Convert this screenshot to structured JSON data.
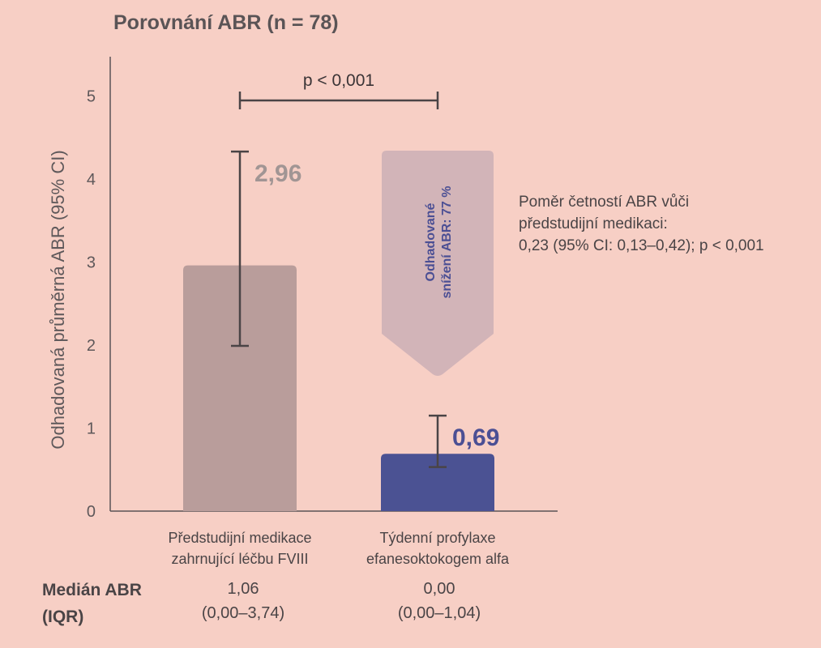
{
  "chart_data": {
    "type": "bar",
    "title": "Porovnání ABR (n = 78)",
    "ylabel": "Odhadovaná průměrná ABR (95% CI)",
    "ylim": [
      0,
      5.5
    ],
    "yticks": [
      "0",
      "1",
      "2",
      "3",
      "4",
      "5"
    ],
    "categories": [
      [
        "Předstudijní medikace",
        "zahrnující léčbu FVIII"
      ],
      [
        "Týdenní profylaxe",
        "efanesoktokogem alfa"
      ]
    ],
    "values": [
      2.96,
      0.69
    ],
    "data_labels": [
      "2,96",
      "0,69"
    ],
    "ci_lower": [
      1.99,
      0.53
    ],
    "ci_upper": [
      4.33,
      1.15
    ],
    "colors": [
      "#b99d9b",
      "#4b5293"
    ],
    "label_colors": [
      "#a19594",
      "#4b4f94"
    ],
    "significance": "p < 0,001",
    "reduction_arrow": [
      "Odhadované",
      "snížení ABR: 77 %"
    ],
    "reduction_arrow_color": "#d2b4b8",
    "annotation": [
      "Poměr četností ABR vůči",
      "předstudijní medikaci:",
      "0,23 (95% CI: 0,13–0,42); p < 0,001"
    ],
    "median_label": [
      "Medián ABR",
      "(IQR)"
    ],
    "median_values": [
      [
        "1,06",
        "(0,00–3,74)"
      ],
      [
        "0,00",
        "(0,00–1,04)"
      ]
    ]
  }
}
